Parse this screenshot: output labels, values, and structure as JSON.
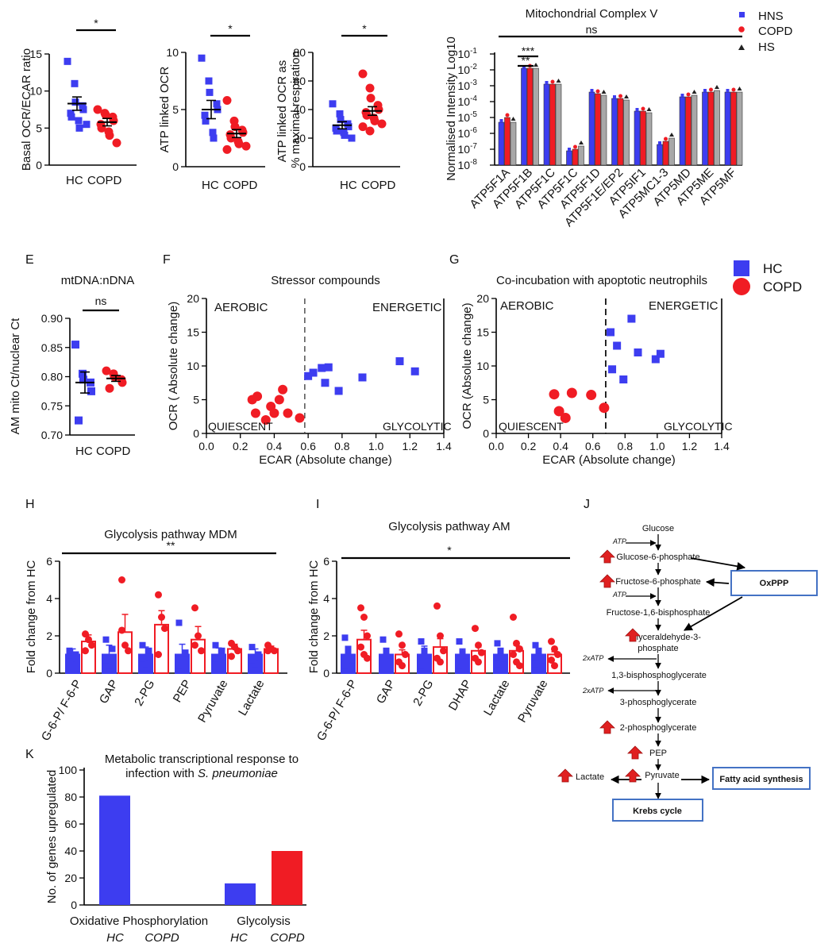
{
  "figure": {
    "colors": {
      "hc": "#3d3df0",
      "copd": "#f01c24",
      "hs": "#222222",
      "grey": "#a8a8a8",
      "box": "#4472c4",
      "arrow": "#e02020"
    }
  },
  "chart_data": [
    {
      "id": "A",
      "type": "scatter",
      "title": "",
      "ylabel": "Basal OCR/ECAR ratio",
      "ylim": [
        0,
        15
      ],
      "yticks": [
        "0",
        "5",
        "10",
        "15"
      ],
      "categories": [
        "HC",
        "COPD"
      ],
      "sig": "*",
      "series": [
        {
          "name": "HC",
          "values": [
            14,
            11,
            8.5,
            8,
            7.5,
            7,
            6.5,
            6,
            5,
            5.5
          ],
          "mean": 8.3,
          "sem": 0.9
        },
        {
          "name": "COPD",
          "values": [
            7.5,
            7,
            6.8,
            6.5,
            6,
            5.5,
            5,
            4.5,
            4,
            3
          ],
          "mean": 5.8,
          "sem": 0.5
        }
      ]
    },
    {
      "id": "B",
      "type": "scatter",
      "title": "",
      "ylabel": "ATP linked OCR",
      "ylim": [
        0,
        10
      ],
      "yticks": [
        "0",
        "5",
        "10"
      ],
      "categories": [
        "HC",
        "COPD"
      ],
      "sig": "*",
      "series": [
        {
          "name": "HC",
          "values": [
            9.5,
            7.5,
            6.5,
            5.5,
            5,
            4.5,
            4,
            3,
            2.5
          ],
          "mean": 5.0,
          "sem": 0.8
        },
        {
          "name": "COPD",
          "values": [
            5.8,
            4,
            3.5,
            3.2,
            3,
            2.8,
            2.5,
            2.2,
            2,
            1.8,
            1.5
          ],
          "mean": 2.9,
          "sem": 0.35
        }
      ]
    },
    {
      "id": "C",
      "type": "scatter",
      "title": "",
      "ylabel": "ATP linked OCR as % maximal respiration",
      "ylim": [
        0,
        80
      ],
      "yticks": [
        "0",
        "20",
        "40",
        "60",
        "80"
      ],
      "categories": [
        "HC",
        "COPD"
      ],
      "sig": "*",
      "series": [
        {
          "name": "HC",
          "values": [
            44,
            37,
            33,
            30,
            28,
            27,
            25,
            24,
            22,
            20
          ],
          "mean": 29,
          "sem": 2.5
        },
        {
          "name": "COPD",
          "values": [
            65,
            55,
            48,
            43,
            40,
            38,
            36,
            34,
            32,
            30,
            28,
            25
          ],
          "mean": 39,
          "sem": 3
        }
      ]
    },
    {
      "id": "D",
      "type": "bar",
      "title": "Mitochondrial Complex V",
      "ylabel": "Normalised Intensity Log10",
      "ytick_exponents": [
        "-1",
        "-2",
        "-3",
        "-4",
        "-5",
        "-6",
        "-7",
        "-8"
      ],
      "ytick_base": "10",
      "ylim_log10": [
        -8,
        -1
      ],
      "sig_top": "ns",
      "sig_pair_1": "***",
      "sig_pair_2": "**",
      "categories": [
        "ATP5F1A",
        "ATP5F1B",
        "ATP5F1C",
        "ATP5F1C",
        "ATP5F1D",
        "ATP5F1E/EP2",
        "ATP5IF1",
        "ATP5MC1-3",
        "ATP5MD",
        "ATP5ME",
        "ATP5MF"
      ],
      "legend": [
        "HNS",
        "COPD",
        "HS"
      ],
      "series": [
        {
          "name": "HNS",
          "log10": [
            -5.3,
            -1.9,
            -2.9,
            -7.1,
            -3.4,
            -3.8,
            -4.6,
            -6.7,
            -3.7,
            -3.4,
            -3.4
          ]
        },
        {
          "name": "COPD",
          "log10": [
            -5.0,
            -1.9,
            -2.9,
            -7.0,
            -3.5,
            -3.8,
            -4.6,
            -6.5,
            -3.7,
            -3.4,
            -3.4
          ]
        },
        {
          "name": "HS",
          "log10": [
            -5.3,
            -1.9,
            -2.9,
            -6.8,
            -3.6,
            -3.9,
            -4.7,
            -6.3,
            -3.6,
            -3.3,
            -3.4
          ]
        }
      ]
    },
    {
      "id": "E",
      "type": "scatter",
      "title": "mtDNA:nDNA",
      "ylabel": "AM mito Ct/nuclear Ct",
      "ylim": [
        0.7,
        0.9
      ],
      "yticks": [
        "0.70",
        "0.75",
        "0.80",
        "0.85",
        "0.90"
      ],
      "categories": [
        "HC",
        "COPD"
      ],
      "sig": "ns",
      "series": [
        {
          "name": "HC",
          "values": [
            0.855,
            0.805,
            0.795,
            0.79,
            0.775,
            0.725
          ],
          "mean": 0.79,
          "sem": 0.018
        },
        {
          "name": "COPD",
          "values": [
            0.81,
            0.805,
            0.8,
            0.795,
            0.79,
            0.78
          ],
          "mean": 0.797,
          "sem": 0.005
        }
      ]
    },
    {
      "id": "F",
      "type": "scatter",
      "title": "Stressor compounds",
      "xlabel": "ECAR (Absolute change)",
      "ylabel": "OCR ( Absolute change)",
      "xlim": [
        0,
        1.4
      ],
      "ylim": [
        0,
        20
      ],
      "xticks": [
        "0.0",
        "0.2",
        "0.4",
        "0.6",
        "0.8",
        "1.0",
        "1.2",
        "1.4"
      ],
      "yticks": [
        "0",
        "5",
        "10",
        "15",
        "20"
      ],
      "quadrants": {
        "tl": "AEROBIC",
        "tr": "ENERGETIC",
        "bl": "QUIESCENT",
        "br": "GLYCOLYTIC"
      },
      "vline": 0.58,
      "series": [
        {
          "name": "COPD",
          "x": [
            0.27,
            0.3,
            0.29,
            0.35,
            0.38,
            0.4,
            0.43,
            0.45,
            0.48,
            0.55
          ],
          "y": [
            5.0,
            5.5,
            3.0,
            2.0,
            4.0,
            3.0,
            5.0,
            6.5,
            3.0,
            2.3
          ]
        },
        {
          "name": "HC",
          "x": [
            0.6,
            0.63,
            0.68,
            0.7,
            0.72,
            0.78,
            0.92,
            1.14,
            1.23
          ],
          "y": [
            8.5,
            9.0,
            9.7,
            7.5,
            9.8,
            6.3,
            8.3,
            10.7,
            9.2
          ]
        }
      ]
    },
    {
      "id": "G",
      "type": "scatter",
      "title": "Co-incubation with apoptotic neutrophils",
      "xlabel": "ECAR (Absolute change)",
      "ylabel": "OCR (Absolute change)",
      "xlim": [
        0,
        1.4
      ],
      "ylim": [
        0,
        20
      ],
      "xticks": [
        "0.0",
        "0.2",
        "0.4",
        "0.6",
        "0.8",
        "1.0",
        "1.2",
        "1.4"
      ],
      "yticks": [
        "0",
        "5",
        "10",
        "15",
        "20"
      ],
      "quadrants": {
        "tl": "AEROBIC",
        "tr": "ENERGETIC",
        "bl": "QUIESCENT",
        "br": "GLYCOLYTIC"
      },
      "vline": 0.68,
      "legend": [
        "HC",
        "COPD"
      ],
      "series": [
        {
          "name": "COPD",
          "x": [
            0.36,
            0.39,
            0.43,
            0.47,
            0.59,
            0.67
          ],
          "y": [
            5.8,
            3.3,
            2.3,
            6.0,
            5.7,
            3.8
          ]
        },
        {
          "name": "HC",
          "x": [
            0.71,
            0.72,
            0.75,
            0.79,
            0.84,
            0.88,
            0.99,
            1.02
          ],
          "y": [
            15.0,
            9.5,
            13.0,
            8.0,
            17.0,
            12.0,
            11.0,
            11.8
          ]
        }
      ]
    },
    {
      "id": "H",
      "type": "bar",
      "title": "Glycolysis pathway MDM",
      "ylabel": "Fold change from HC",
      "ylim": [
        0,
        6
      ],
      "yticks": [
        "0",
        "2",
        "4",
        "6"
      ],
      "sig": "**",
      "categories": [
        "G-6-P/ F-6-P",
        "GAP",
        "2-PG",
        "PEP",
        "Pyruvate",
        "Lactate"
      ],
      "series": [
        {
          "name": "HC",
          "values": [
            1.0,
            1.0,
            1.0,
            1.0,
            1.0,
            1.0
          ],
          "err": [
            0.3,
            0.5,
            0.4,
            0.55,
            0.35,
            0.3
          ],
          "points": [
            [
              1.2,
              0.8,
              1.0,
              0.6
            ],
            [
              1.8,
              0.4,
              1.3,
              0.7
            ],
            [
              1.5,
              0.5,
              1.2,
              0.8
            ],
            [
              2.7,
              0.3,
              1.1,
              0.4
            ],
            [
              1.5,
              0.6,
              1.2,
              0.8
            ],
            [
              1.4,
              0.5,
              1.0,
              0.7
            ]
          ]
        },
        {
          "name": "COPD",
          "values": [
            1.7,
            2.2,
            2.6,
            1.8,
            1.3,
            1.3
          ],
          "err": [
            0.35,
            0.95,
            0.75,
            0.7,
            0.25,
            0.15
          ],
          "points": [
            [
              2.1,
              1.8,
              1.5,
              1.2
            ],
            [
              5.0,
              1.5,
              1.2,
              2.3
            ],
            [
              4.2,
              3.0,
              2.4,
              1.0
            ],
            [
              3.5,
              2.0,
              1.2,
              1.5
            ],
            [
              1.6,
              1.4,
              1.2,
              0.9
            ],
            [
              1.5,
              1.3,
              1.2,
              1.2
            ]
          ]
        }
      ]
    },
    {
      "id": "I",
      "type": "bar",
      "title": "Glycolysis pathway AM",
      "ylabel": "Fold change from HC",
      "ylim": [
        0,
        6
      ],
      "yticks": [
        "0",
        "2",
        "4",
        "6"
      ],
      "sig": "*",
      "categories": [
        "G-6-P/ F-6-P",
        "GAP",
        "2-PG",
        "DHAP",
        "Lactate",
        "Pyruvate"
      ],
      "series": [
        {
          "name": "HC",
          "values": [
            1.0,
            1.0,
            1.0,
            1.0,
            1.0,
            1.0
          ],
          "err": [
            0.35,
            0.3,
            0.45,
            0.3,
            0.25,
            0.2
          ],
          "points": [
            [
              1.9,
              1.3,
              0.7,
              0.4,
              1.0
            ],
            [
              1.8,
              1.2,
              0.6,
              0.3,
              1.0
            ],
            [
              1.7,
              1.0,
              0.6,
              0.4,
              1.2
            ],
            [
              1.7,
              1.1,
              0.6,
              0.4,
              1.0
            ],
            [
              1.6,
              1.2,
              0.8,
              0.5
            ],
            [
              1.5,
              1.2,
              0.7,
              0.5
            ]
          ]
        },
        {
          "name": "COPD",
          "values": [
            1.8,
            1.0,
            1.4,
            1.2,
            1.2,
            1.0
          ],
          "err": [
            0.5,
            0.25,
            0.45,
            0.2,
            0.3,
            0.15
          ],
          "points": [
            [
              3.5,
              3.0,
              2.0,
              1.4,
              1.0,
              0.8
            ],
            [
              2.1,
              1.5,
              1.0,
              0.6,
              0.4
            ],
            [
              3.6,
              2.0,
              1.2,
              0.8,
              0.6
            ],
            [
              2.4,
              1.5,
              1.1,
              0.8,
              0.6
            ],
            [
              3.0,
              1.6,
              1.3,
              1.0,
              0.6,
              0.4
            ],
            [
              1.7,
              1.3,
              1.0,
              0.7,
              0.4
            ]
          ]
        }
      ]
    },
    {
      "id": "K",
      "type": "bar",
      "title_line1": "Metabolic transcriptional response to",
      "title_line2_a": "infection with ",
      "title_line2_b": "S. pneumoniae",
      "ylabel": "No. of genes upregulated",
      "ylim": [
        0,
        100
      ],
      "yticks": [
        "0",
        "20",
        "40",
        "60",
        "80",
        "100"
      ],
      "groups": [
        "Oxidative Phosphorylation",
        "Glycolysis"
      ],
      "sublabels": [
        "HC",
        "COPD",
        "HC",
        "COPD"
      ],
      "series": [
        {
          "name": "HC",
          "values": [
            81,
            16
          ]
        },
        {
          "name": "COPD",
          "values": [
            0,
            40
          ]
        }
      ]
    }
  ],
  "pathway": {
    "glucose": "Glucose",
    "atp1": "ATP",
    "g6p": "Glucose-6-phosphate",
    "f6p": "Fructose-6-phosphate",
    "atp2": "ATP",
    "f16bp": "Fructose-1,6-bisphosphate",
    "gap_1": "Glyceraldehyde-3-",
    "gap_2": "phosphate",
    "atp3": "2xATP",
    "bpg": "1,3-bisphosphoglycerate",
    "atp4": "2xATP",
    "pg3": "3-phosphoglycerate",
    "pg2": "2-phosphoglycerate",
    "pep": "PEP",
    "pyruvate": "Pyruvate",
    "lactate": "Lactate",
    "oxppp": "OxPPP",
    "fas": "Fatty acid synthesis",
    "krebs": "Krebs cycle"
  },
  "panel_labels": [
    "E",
    "F",
    "G",
    "H",
    "I",
    "J",
    "K"
  ]
}
